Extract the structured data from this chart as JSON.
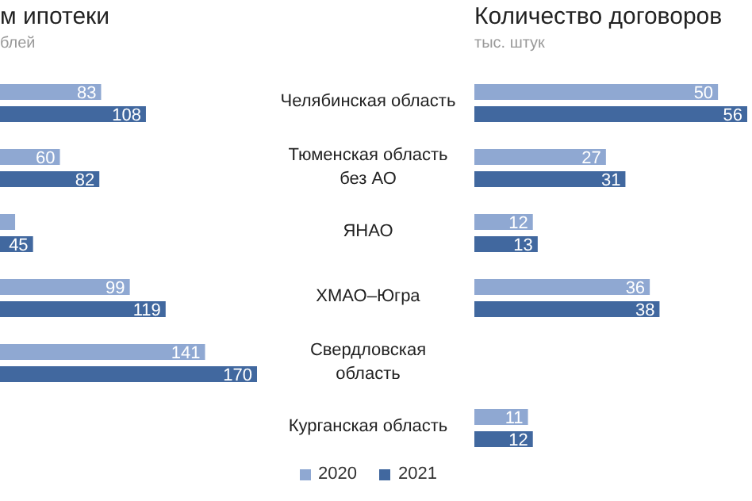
{
  "chart_data": [
    {
      "type": "bar",
      "orientation": "horizontal",
      "title": "м ипотеки",
      "subtitle": "блей",
      "categories": [
        "Челябинская область",
        "Тюменская область\nбез АО",
        "ЯНАО",
        "ХМАО–Югра",
        "Свердловская\nобласть",
        "Курганская область"
      ],
      "series": [
        {
          "name": "2020",
          "color": "#8fa8d2",
          "values": [
            83,
            60,
            35,
            99,
            141,
            null
          ],
          "value_labels": [
            "83",
            "60",
            null,
            "99",
            "141",
            null
          ]
        },
        {
          "name": "2021",
          "color": "#41689f",
          "values": [
            108,
            82,
            45,
            119,
            170,
            null
          ],
          "value_labels": [
            "108",
            "82",
            "45",
            "119",
            "170",
            null
          ]
        }
      ],
      "legend": "bottom"
    },
    {
      "type": "bar",
      "orientation": "horizontal",
      "title": "Количество договоров",
      "subtitle": "тыс. штук",
      "categories": [
        null,
        null,
        null,
        null,
        null,
        null
      ],
      "series": [
        {
          "color": "#8fa8d2",
          "values": [
            50,
            27,
            12,
            36,
            null,
            11
          ]
        },
        {
          "color": "#41689f",
          "values": [
            56,
            31,
            13,
            38,
            null,
            12
          ]
        }
      ],
      "data_labels": true
    }
  ]
}
